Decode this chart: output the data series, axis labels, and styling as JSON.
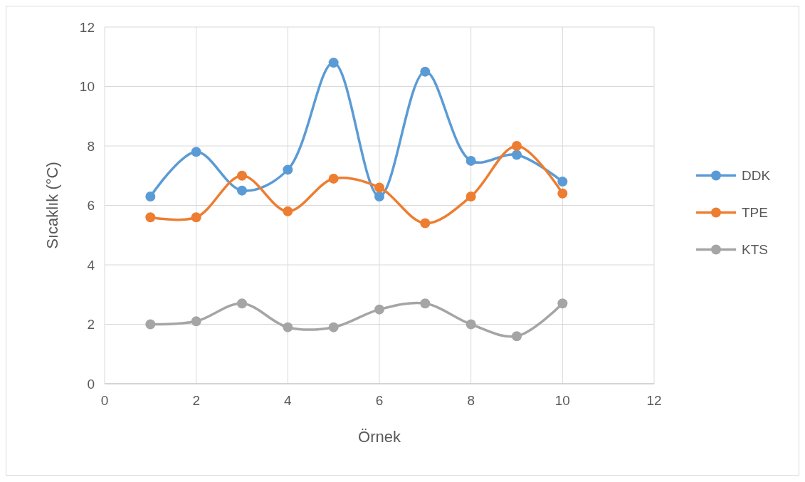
{
  "chart_data": {
    "type": "line",
    "xlabel": "Örnek",
    "ylabel": "Sıcaklık (°C)",
    "x": [
      1,
      2,
      3,
      4,
      5,
      6,
      7,
      8,
      9,
      10
    ],
    "series": [
      {
        "name": "DDK",
        "color": "#5b9bd5",
        "values": [
          6.3,
          7.8,
          6.5,
          7.2,
          10.8,
          6.3,
          10.5,
          7.5,
          7.7,
          6.8
        ]
      },
      {
        "name": "TPE",
        "color": "#ed7d31",
        "values": [
          5.6,
          5.6,
          7.0,
          5.8,
          6.9,
          6.6,
          5.4,
          6.3,
          8.0,
          6.4
        ]
      },
      {
        "name": "KTS",
        "color": "#a5a5a5",
        "values": [
          2.0,
          2.1,
          2.7,
          1.9,
          1.9,
          2.5,
          2.7,
          2.0,
          1.6,
          2.7
        ]
      }
    ],
    "xlim": [
      0,
      12
    ],
    "xticks": [
      0,
      2,
      4,
      6,
      8,
      10,
      12
    ],
    "ylim": [
      0,
      12
    ],
    "yticks": [
      0,
      2,
      4,
      6,
      8,
      10,
      12
    ],
    "grid": true,
    "legend": "right",
    "marker": "circle",
    "line_style": "solid"
  }
}
